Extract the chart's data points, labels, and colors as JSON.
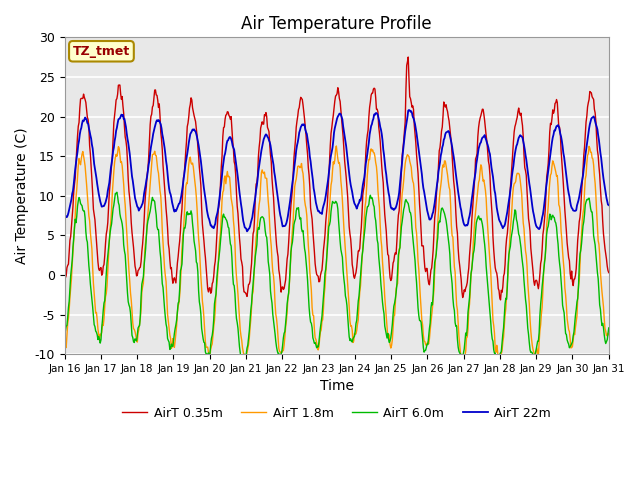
{
  "title": "Air Temperature Profile",
  "xlabel": "Time",
  "ylabel": "Air Temperature (C)",
  "ylim": [
    -10,
    30
  ],
  "annotation": "TZ_tmet",
  "bg_color": "#e8e8e8",
  "grid_color": "#ffffff",
  "line_colors": {
    "AirT 0.35m": "#cc0000",
    "AirT 1.8m": "#ff9900",
    "AirT 6.0m": "#00bb00",
    "AirT 22m": "#0000cc"
  },
  "xtick_labels": [
    "Jan 16",
    "Jan 17",
    "Jan 18",
    "Jan 19",
    "Jan 20",
    "Jan 21",
    "Jan 22",
    "Jan 23",
    "Jan 24",
    "Jan 25",
    "Jan 26",
    "Jan 27",
    "Jan 28",
    "Jan 29",
    "Jan 30",
    "Jan 31"
  ],
  "xtick_positions": [
    0,
    1,
    2,
    3,
    4,
    5,
    6,
    7,
    8,
    9,
    10,
    11,
    12,
    13,
    14,
    15
  ],
  "ytick_labels": [
    "-10",
    "-5",
    "0",
    "5",
    "10",
    "15",
    "20",
    "25",
    "30"
  ],
  "ytick_values": [
    -10,
    -5,
    0,
    5,
    10,
    15,
    20,
    25,
    30
  ]
}
